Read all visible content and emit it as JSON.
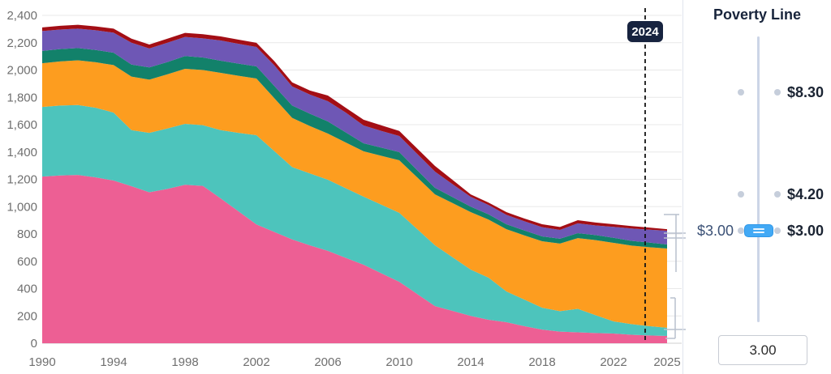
{
  "chart": {
    "y_ticks": [
      "0",
      "200",
      "400",
      "600",
      "800",
      "1,000",
      "1,200",
      "1,400",
      "1,600",
      "1,800",
      "2,000",
      "2,200",
      "2,400"
    ],
    "marker_label": "2024"
  },
  "chart_data": {
    "type": "area",
    "stacked": true,
    "title": "",
    "xlabel": "",
    "ylabel": "",
    "ylim": [
      0,
      2400
    ],
    "y_tick_interval": 200,
    "grid": true,
    "legend_position": "none",
    "annotation": {
      "year": 2024,
      "label": "2024",
      "style": "dashed-vertical-line"
    },
    "x": [
      1990,
      1991,
      1992,
      1993,
      1994,
      1995,
      1996,
      1997,
      1998,
      1999,
      2000,
      2001,
      2002,
      2003,
      2004,
      2005,
      2006,
      2007,
      2008,
      2009,
      2010,
      2011,
      2012,
      2013,
      2014,
      2015,
      2016,
      2017,
      2018,
      2019,
      2020,
      2021,
      2022,
      2023,
      2024,
      2025
    ],
    "x_tick_labels": [
      1990,
      1994,
      1998,
      2002,
      2006,
      2010,
      2014,
      2018,
      2022,
      2025
    ],
    "series": [
      {
        "name": "pink",
        "color": "#ed5f94",
        "values": [
          1220,
          1228,
          1232,
          1214,
          1191,
          1150,
          1105,
          1130,
          1160,
          1152,
          1060,
          965,
          870,
          815,
          760,
          716,
          676,
          625,
          575,
          512,
          450,
          361,
          272,
          236,
          200,
          172,
          154,
          125,
          100,
          85,
          80,
          75,
          71,
          62,
          57,
          53
        ]
      },
      {
        "name": "teal",
        "color": "#4dc4bc",
        "values": [
          510,
          512,
          512,
          510,
          497,
          410,
          435,
          442,
          446,
          444,
          500,
          575,
          653,
          592,
          530,
          527,
          521,
          510,
          498,
          502,
          505,
          475,
          445,
          392,
          339,
          308,
          225,
          195,
          160,
          150,
          172,
          130,
          89,
          78,
          68,
          60
        ]
      },
      {
        "name": "orange",
        "color": "#fd9d1f",
        "values": [
          320,
          323,
          327,
          333,
          348,
          392,
          390,
          396,
          403,
          404,
          419,
          418,
          415,
          387,
          360,
          347,
          338,
          335,
          332,
          358,
          384,
          379,
          373,
          397,
          421,
          425,
          456,
          470,
          487,
          495,
          518,
          550,
          575,
          575,
          578,
          580
        ]
      },
      {
        "name": "green",
        "color": "#12816a",
        "values": [
          90,
          90,
          90,
          90,
          91,
          88,
          89,
          90,
          93,
          92,
          89,
          89,
          89,
          90,
          90,
          90,
          89,
          74,
          59,
          60,
          60,
          53,
          48,
          44,
          40,
          39,
          36,
          36,
          35,
          35,
          36,
          37,
          37,
          35,
          34,
          30
        ]
      },
      {
        "name": "purple",
        "color": "#6e57b5",
        "values": [
          145,
          143,
          142,
          144,
          146,
          160,
          139,
          141,
          140,
          140,
          148,
          145,
          142,
          151,
          140,
          140,
          148,
          145,
          130,
          122,
          118,
          119,
          118,
          94,
          72,
          68,
          69,
          67,
          68,
          65,
          72,
          70,
          80,
          90,
          94,
          101
        ]
      },
      {
        "name": "dark-red",
        "color": "#a30e15",
        "values": [
          27,
          28,
          28,
          28,
          30,
          30,
          29,
          30,
          30,
          30,
          30,
          30,
          30,
          30,
          30,
          30,
          41,
          35,
          42,
          41,
          37,
          39,
          42,
          31,
          18,
          18,
          20,
          20,
          21,
          21,
          23,
          22,
          19,
          18,
          16,
          11
        ]
      }
    ]
  },
  "panel": {
    "title": "Poverty Line",
    "ticks": [
      {
        "label": "$8.30"
      },
      {
        "label": "$4.20"
      },
      {
        "label": "$3.00"
      }
    ],
    "current_value_label": "$3.00",
    "input_value": "3.00",
    "handle_color": "#42a9f5"
  }
}
